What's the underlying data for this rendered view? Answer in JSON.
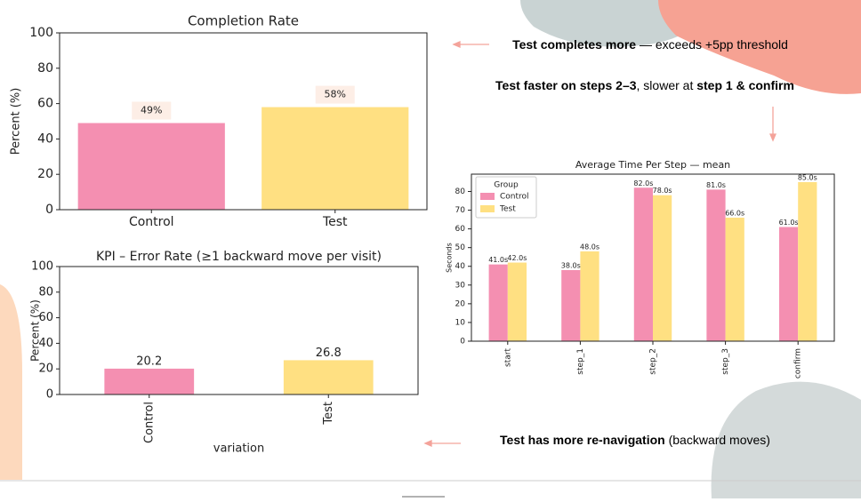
{
  "chart_data": [
    {
      "type": "bar",
      "title": "Completion Rate",
      "y_label": "Percent (%)",
      "categories": [
        "Control",
        "Test"
      ],
      "values": [
        49,
        58
      ],
      "value_labels": [
        "49%",
        "58%"
      ],
      "colors": [
        "#f48fb1",
        "#ffe082"
      ],
      "ylim": [
        0,
        100
      ],
      "yticks": [
        0,
        20,
        40,
        60,
        80,
        100
      ]
    },
    {
      "type": "bar",
      "title": "KPI – Error Rate (≥1 backward move per visit)",
      "x_label": "variation",
      "y_label": "Percent (%)",
      "categories": [
        "Control",
        "Test"
      ],
      "values": [
        20.2,
        26.8
      ],
      "colors": [
        "#f48fb1",
        "#ffe082"
      ],
      "ylim": [
        0,
        100
      ],
      "yticks": [
        0,
        20,
        40,
        60,
        80,
        100
      ]
    },
    {
      "type": "grouped_bar",
      "title": "Average Time Per Step — mean",
      "y_label": "Seconds",
      "legend_title": "Group",
      "categories": [
        "start",
        "step_1",
        "step_2",
        "step_3",
        "confirm"
      ],
      "series": [
        {
          "name": "Control",
          "color": "#f48fb1",
          "values": [
            41,
            38,
            82,
            81,
            61
          ],
          "value_labels": [
            "41.0s",
            "38.0s",
            "82.0s",
            "81.0s",
            "61.0s"
          ]
        },
        {
          "name": "Test",
          "color": "#ffe082",
          "values": [
            42,
            48,
            78,
            66,
            85
          ],
          "value_labels": [
            "42.0s",
            "48.0s",
            "78.0s",
            "66.0s",
            "85.0s"
          ]
        }
      ],
      "ylim": [
        0,
        89.25
      ],
      "yticks": [
        0,
        10,
        20,
        30,
        40,
        50,
        60,
        70,
        80
      ]
    }
  ],
  "annotations": [
    [
      {
        "text": "Test completes more",
        "bold": true
      },
      {
        "text": " — exceeds +5pp threshold",
        "bold": false
      }
    ],
    [
      {
        "text": "Test faster on steps 2–3",
        "bold": true
      },
      {
        "text": ", slower at ",
        "bold": false
      },
      {
        "text": "step 1 & confirm",
        "bold": true
      }
    ],
    [
      {
        "text": "Test has more re-navigation",
        "bold": true
      },
      {
        "text": " (backward moves)",
        "bold": false
      }
    ]
  ]
}
